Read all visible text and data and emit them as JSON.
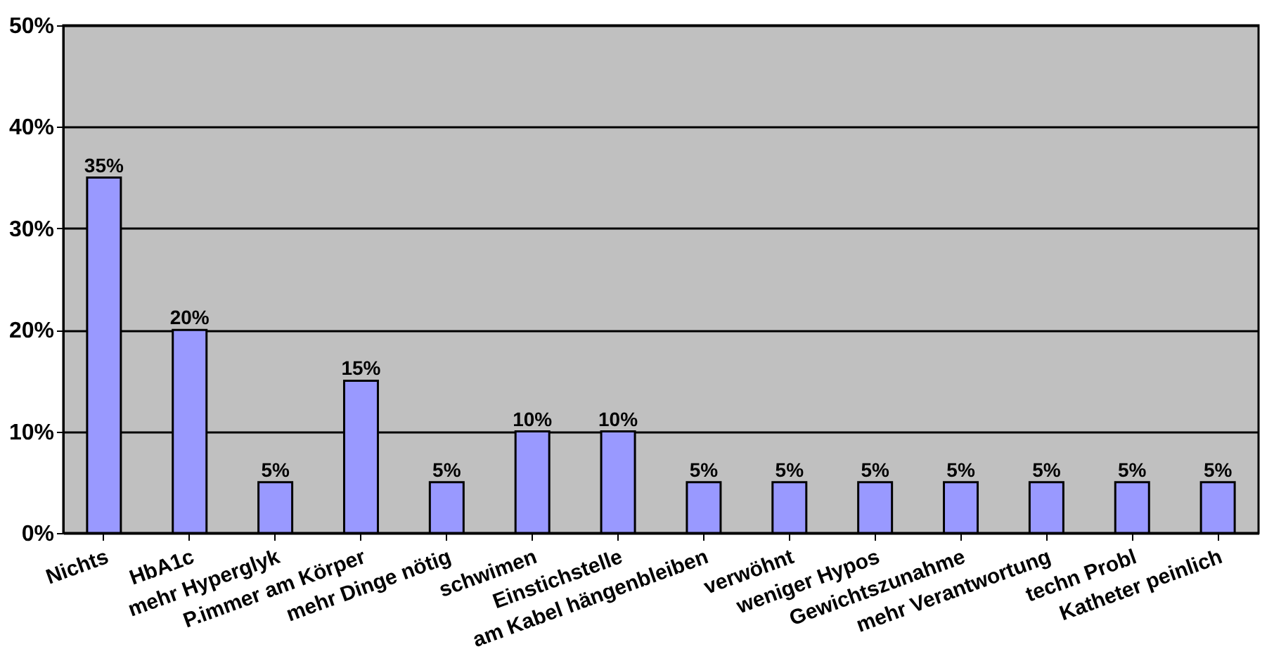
{
  "chart_data": {
    "type": "bar",
    "categories": [
      "Nichts",
      "HbA1c",
      "mehr Hyperglyk",
      "P.immer am Körper",
      "mehr Dinge nötig",
      "schwimen",
      "Einstichstelle",
      "am Kabel hängenbleiben",
      "verwöhnt",
      "weniger Hypos",
      "Gewichtszunahme",
      "mehr Verantwortung",
      "techn Probl",
      "Katheter peinlich"
    ],
    "values": [
      35,
      20,
      5,
      15,
      5,
      10,
      10,
      5,
      5,
      5,
      5,
      5,
      5,
      5
    ],
    "value_labels": [
      "35%",
      "20%",
      "5%",
      "15%",
      "5%",
      "10%",
      "10%",
      "5%",
      "5%",
      "5%",
      "5%",
      "5%",
      "5%",
      "5%"
    ],
    "color": "#9999ff",
    "ylim": [
      0,
      50
    ],
    "yticks": [
      {
        "value": 0,
        "label": "0%"
      },
      {
        "value": 10,
        "label": "10%"
      },
      {
        "value": 20,
        "label": "20%"
      },
      {
        "value": 30,
        "label": "30%"
      },
      {
        "value": 40,
        "label": "40%"
      },
      {
        "value": 50,
        "label": "50%"
      }
    ],
    "grid": "y"
  }
}
